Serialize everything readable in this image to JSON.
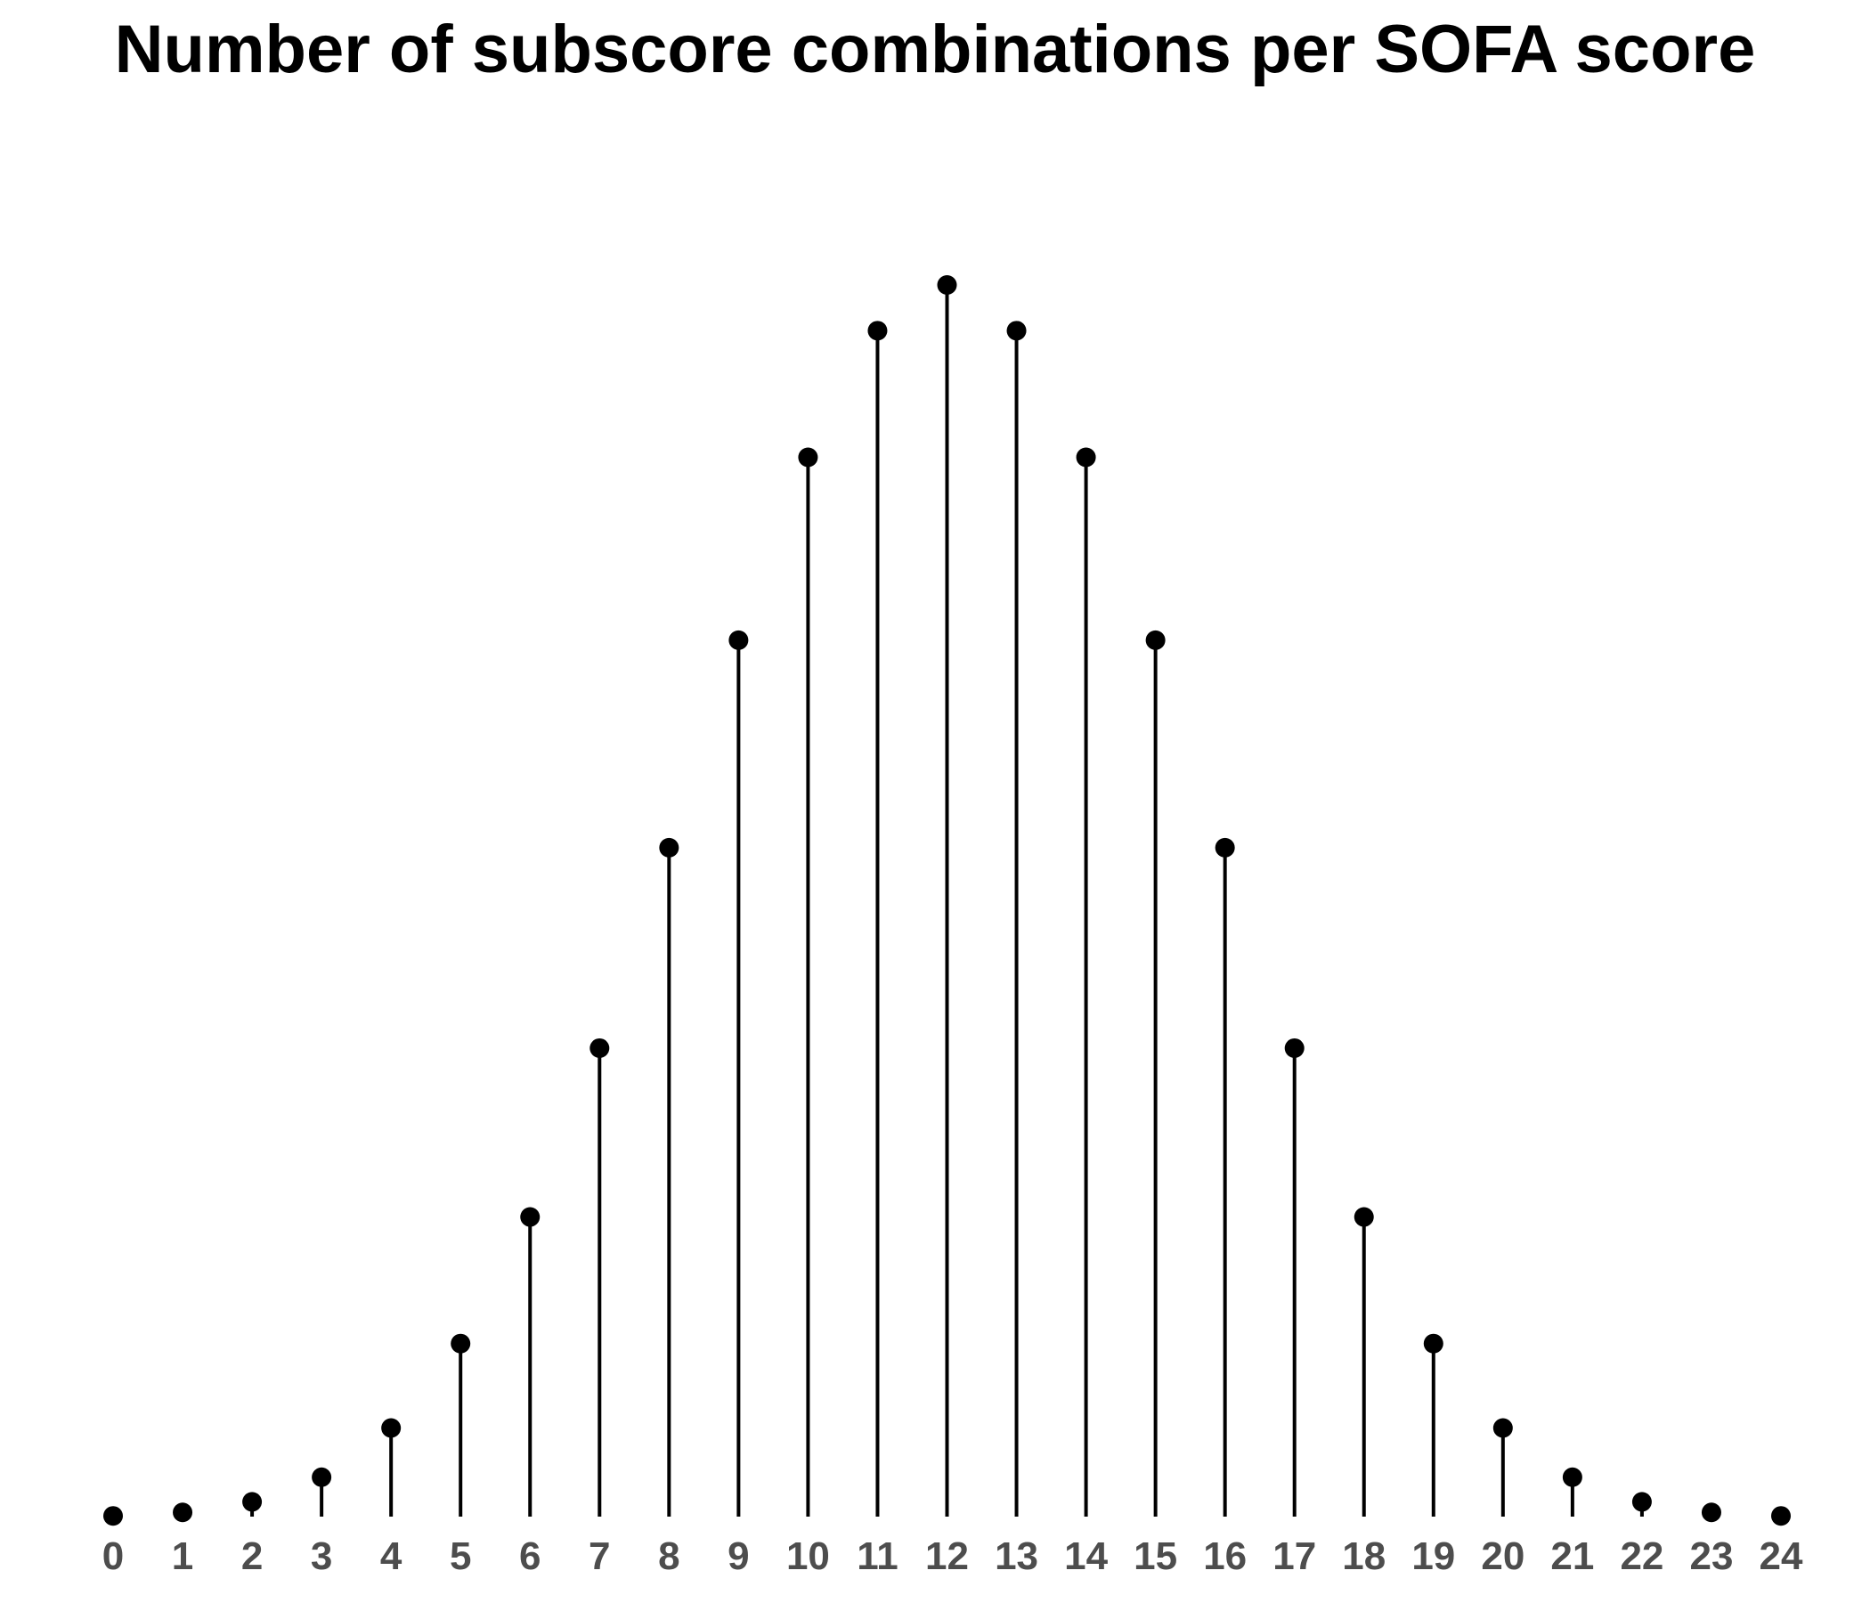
{
  "chart_data": {
    "type": "lollipop",
    "title": "Number of subscore combinations per SOFA score",
    "xlabel": "",
    "ylabel": "",
    "categories": [
      "0",
      "1",
      "2",
      "3",
      "4",
      "5",
      "6",
      "7",
      "8",
      "9",
      "10",
      "11",
      "12",
      "13",
      "14",
      "15",
      "16",
      "17",
      "18",
      "19",
      "20",
      "21",
      "22",
      "23",
      "24"
    ],
    "x": [
      0,
      1,
      2,
      3,
      4,
      5,
      6,
      7,
      8,
      9,
      10,
      11,
      12,
      13,
      14,
      15,
      16,
      17,
      18,
      19,
      20,
      21,
      22,
      23,
      24
    ],
    "values": [
      1,
      6,
      21,
      56,
      126,
      246,
      426,
      666,
      951,
      1246,
      1506,
      1686,
      1751,
      1686,
      1506,
      1246,
      951,
      666,
      426,
      246,
      126,
      56,
      21,
      6,
      1
    ],
    "xlim": [
      0,
      24
    ],
    "ylim": [
      0,
      1751
    ],
    "grid": false,
    "y_axis_shown": false,
    "colors": {
      "stem": "#000000",
      "point": "#000000",
      "tick_label": "#4d4d4d"
    }
  }
}
